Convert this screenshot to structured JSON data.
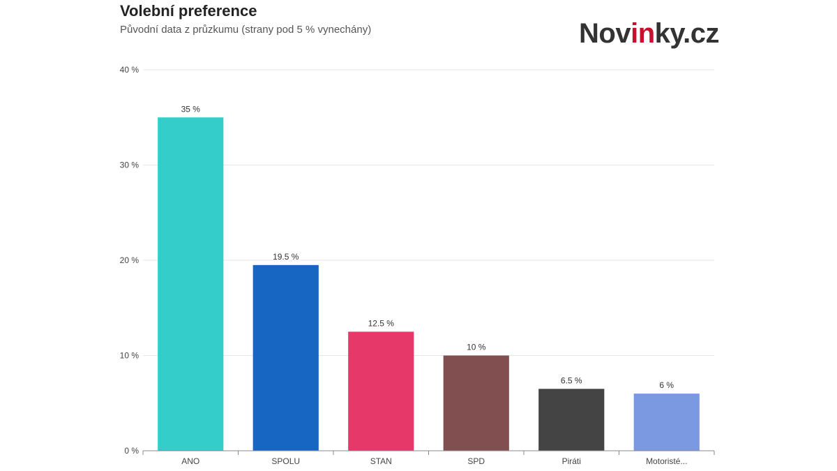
{
  "header": {
    "title": "Volební preference",
    "subtitle": "Původní data z průzkumu (strany pod 5 % vynechány)"
  },
  "logo": {
    "part1": "Nov",
    "part2": "in",
    "part3": "ky.cz",
    "accent_color": "#c8102e"
  },
  "chart_data": {
    "type": "bar",
    "title": "Volební preference",
    "subtitle": "Původní data z průzkumu (strany pod 5 % vynechány)",
    "categories": [
      "ANO",
      "SPOLU",
      "STAN",
      "SPD",
      "Piráti",
      "Motoristé..."
    ],
    "values": [
      35,
      19.5,
      12.5,
      10,
      6.5,
      6
    ],
    "data_labels": [
      "35 %",
      "19.5 %",
      "12.5 %",
      "10 %",
      "6.5 %",
      "6 %"
    ],
    "colors": [
      "#35cdc9",
      "#1766c2",
      "#e6396a",
      "#824f50",
      "#444444",
      "#7b99e0"
    ],
    "ylim": [
      0,
      40
    ],
    "yticks": [
      0,
      10,
      20,
      30,
      40
    ],
    "ytick_labels": [
      "0 %",
      "10 %",
      "20 %",
      "30 %",
      "40 %"
    ],
    "xlabel": "",
    "ylabel": "",
    "grid": true,
    "legend": "none"
  }
}
